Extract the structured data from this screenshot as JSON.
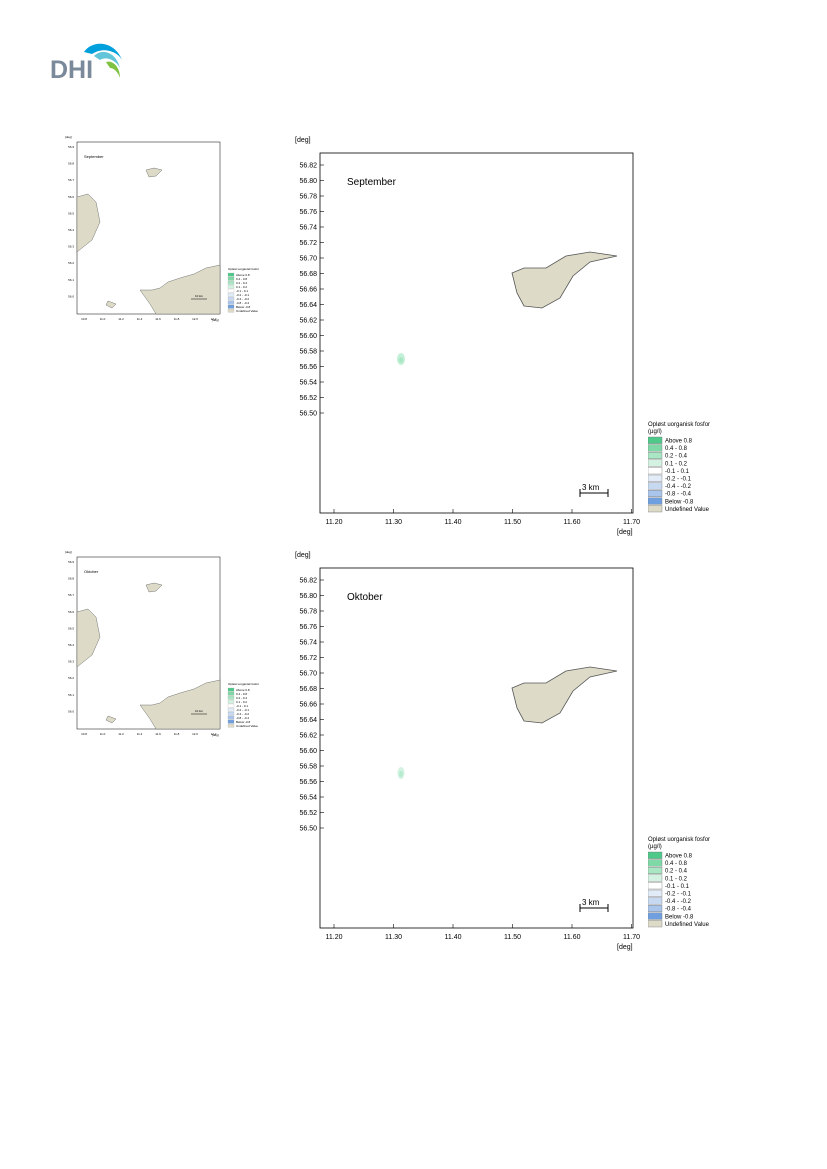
{
  "logo": {
    "text": "DHI",
    "colors": [
      "#00a0dc",
      "#62c6d8",
      "#7fc241"
    ]
  },
  "land_color": "#dddbc8",
  "legend_colors": [
    "#4ec98a",
    "#7fd9a6",
    "#a9e6c4",
    "#d3f2e2",
    "#ffffff",
    "#e2ecf8",
    "#c6d9f1",
    "#a9c5ec",
    "#6f9fdf",
    "#dddbc8"
  ],
  "maps": [
    {
      "month": "September",
      "x_ticks": [
        "11.20",
        "11.30",
        "11.40",
        "11.50",
        "11.60",
        "11.70"
      ],
      "y_ticks": [
        "56.82",
        "56.80",
        "56.78",
        "56.76",
        "56.74",
        "56.72",
        "56.70",
        "56.68",
        "56.66",
        "56.64",
        "56.62",
        "56.60",
        "56.58",
        "56.56",
        "56.54",
        "56.52",
        "56.50"
      ],
      "axis_unit_top": "[deg]",
      "axis_unit_bottom": "[deg]",
      "scale_bar": "3 km",
      "legend": {
        "title_line1": "Opløst uorganisk fosfor",
        "title_line2": "(µg/l)",
        "items": [
          "Above  0.8",
          "0.4 -  0.8",
          "0.2 -  0.4",
          "0.1 -  0.2",
          "-0.1 -  0.1",
          "-0.2 - -0.1",
          "-0.4 - -0.2",
          "-0.8 - -0.4",
          "Below -0.8",
          "Undefined Value"
        ]
      },
      "overview": {
        "label": "September",
        "x_ticks": [
          "10.8",
          "11.0",
          "11.2",
          "11.4",
          "11.6",
          "11.8",
          "12.0",
          "12.2"
        ],
        "y_ticks": [
          "56.9",
          "56.8",
          "56.7",
          "56.6",
          "56.5",
          "56.4",
          "56.3",
          "56.2",
          "56.1",
          "56.0"
        ],
        "unit": "[deg]",
        "scale_bar": "10 km",
        "legend_title": "Opløst uorganisk fosfor",
        "legend_items": [
          "Above 0.8",
          "0.4 - 0.8",
          "0.2 - 0.4",
          "0.1 - 0.2",
          "-0.1 - 0.1",
          "-0.2 - -0.1",
          "-0.4 - -0.2",
          "-0.8 - -0.4",
          "Below -0.8",
          "Undefined Value"
        ]
      }
    },
    {
      "month": "Oktober",
      "x_ticks": [
        "11.20",
        "11.30",
        "11.40",
        "11.50",
        "11.60",
        "11.70"
      ],
      "y_ticks": [
        "56.82",
        "56.80",
        "56.78",
        "56.76",
        "56.74",
        "56.72",
        "56.70",
        "56.68",
        "56.66",
        "56.64",
        "56.62",
        "56.60",
        "56.58",
        "56.56",
        "56.54",
        "56.52",
        "56.50"
      ],
      "axis_unit_top": "[deg]",
      "axis_unit_bottom": "[deg]",
      "scale_bar": "3 km",
      "legend": {
        "title_line1": "Opløst uorganisk fosfor",
        "title_line2": "(µg/l)",
        "items": [
          "Above  0.8",
          "0.4 -  0.8",
          "0.2 -  0.4",
          "0.1 -  0.2",
          "-0.1 -  0.1",
          "-0.2 - -0.1",
          "-0.4 - -0.2",
          "-0.8 - -0.4",
          "Below -0.8",
          "Undefined Value"
        ]
      },
      "overview": {
        "label": "Oktober",
        "x_ticks": [
          "10.8",
          "11.0",
          "11.2",
          "11.4",
          "11.6",
          "11.8",
          "12.0",
          "12.2"
        ],
        "y_ticks": [
          "56.9",
          "56.8",
          "56.7",
          "56.6",
          "56.5",
          "56.4",
          "56.3",
          "56.2",
          "56.1",
          "56.0"
        ],
        "unit": "[deg]",
        "scale_bar": "10 km",
        "legend_title": "Opløst uorganisk fosfor",
        "legend_items": [
          "Above 0.8",
          "0.4 - 0.8",
          "0.2 - 0.4",
          "0.1 - 0.2",
          "-0.1 - 0.1",
          "-0.2 - -0.1",
          "-0.4 - -0.2",
          "-0.8 - -0.4",
          "Below -0.8",
          "Undefined Value"
        ]
      }
    }
  ]
}
